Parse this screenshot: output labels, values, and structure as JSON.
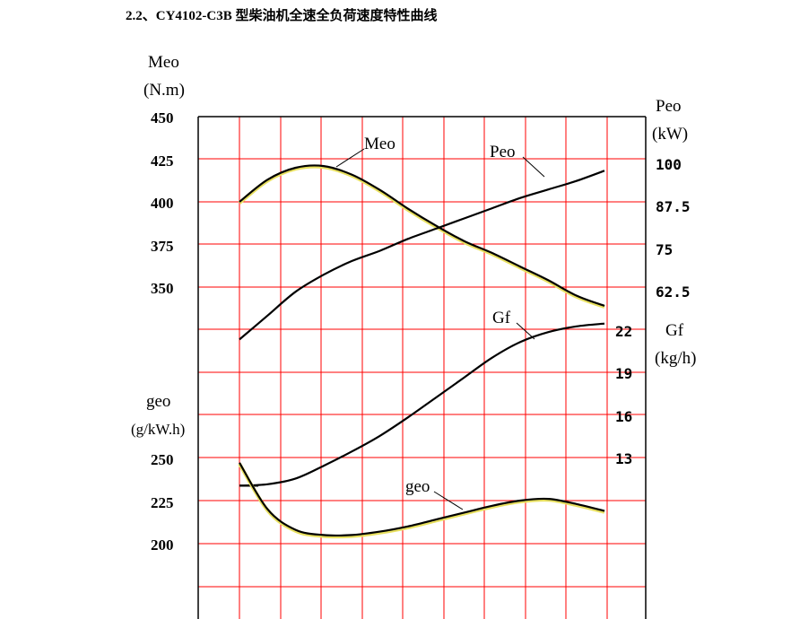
{
  "page": {
    "title": "2.2、CY4102-C3B 型柴油机全速全负荷速度特性曲线"
  },
  "chart_data": {
    "type": "line",
    "axes": {
      "meo": {
        "label_line1": "Meo",
        "label_line2": "(N.m)",
        "ticks": [
          450,
          425,
          400,
          375,
          350
        ]
      },
      "geo": {
        "label_line1": "geo",
        "label_line2": "(g/kW.h)",
        "ticks": [
          250,
          225,
          200
        ]
      },
      "peo": {
        "label_line1": "Peo",
        "label_line2": "(kW)",
        "ticks": [
          "100",
          "87.5",
          "75",
          "62.5"
        ]
      },
      "gf": {
        "label_line1": "Gf",
        "label_line2": "(kg/h)",
        "ticks": [
          "22",
          "19",
          "16",
          "13"
        ]
      }
    },
    "grid": true,
    "series": [
      {
        "name": "Meo",
        "axis": "meo",
        "color": "#000000",
        "highlight": "#e8e060",
        "values": [
          400,
          413,
          420,
          421,
          416,
          407,
          396,
          386,
          377,
          370,
          362,
          354,
          345,
          339
        ]
      },
      {
        "name": "Peo",
        "axis": "peo",
        "color": "#000000",
        "values": [
          47,
          54,
          61,
          66,
          70,
          73,
          76.5,
          79.5,
          82.5,
          85.5,
          88.5,
          91,
          93.5,
          96.5
        ]
      },
      {
        "name": "Gf",
        "axis": "gf",
        "color": "#000000",
        "values": [
          11,
          11.1,
          11.5,
          12.4,
          13.4,
          14.5,
          15.8,
          17.2,
          18.6,
          20,
          21.1,
          21.8,
          22.2,
          22.4
        ]
      },
      {
        "name": "geo",
        "axis": "geo",
        "color": "#000000",
        "highlight": "#e8e060",
        "values": [
          247,
          220,
          208,
          205,
          205,
          207,
          210,
          214,
          218,
          222,
          225,
          226,
          223,
          219
        ]
      }
    ]
  }
}
